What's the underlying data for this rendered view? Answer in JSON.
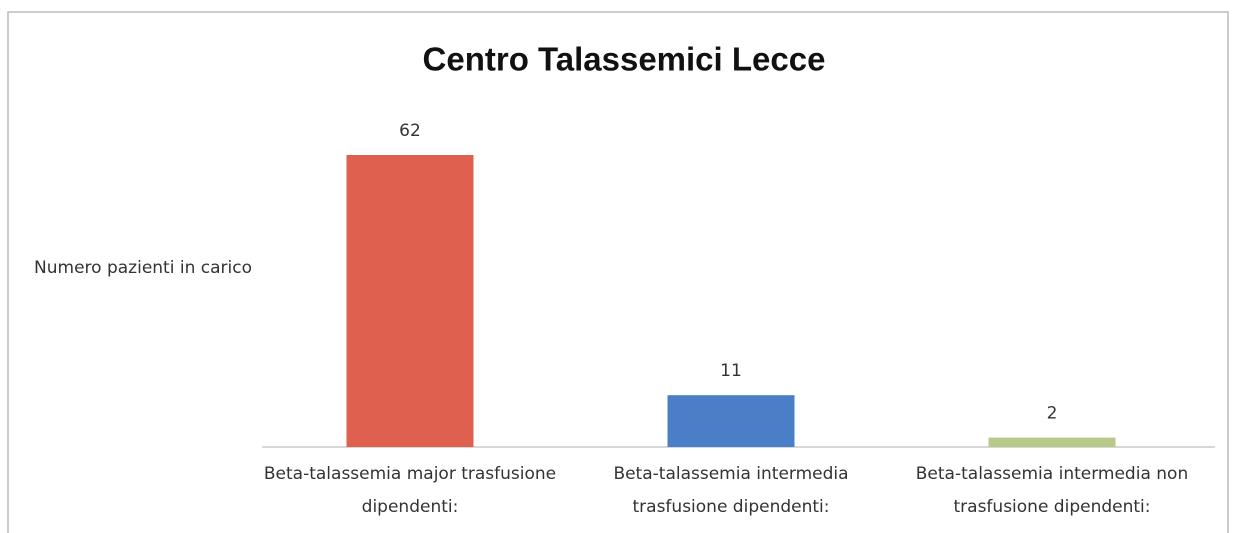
{
  "chart_data": {
    "type": "bar",
    "title": "Centro Talassemici Lecce",
    "y_label": "Numero pazienti in carico",
    "categories": [
      "Beta-talassemia major trasfusione dipendenti:",
      "Beta-talassemia intermedia trasfusione dipendenti:",
      "Beta-talassemia intermedia non trasfusione dipendenti:"
    ],
    "values": [
      62,
      11,
      2
    ],
    "colors": [
      "#e0604f",
      "#4a7fc8",
      "#b8c98c"
    ],
    "ylim": [
      0,
      62
    ]
  }
}
